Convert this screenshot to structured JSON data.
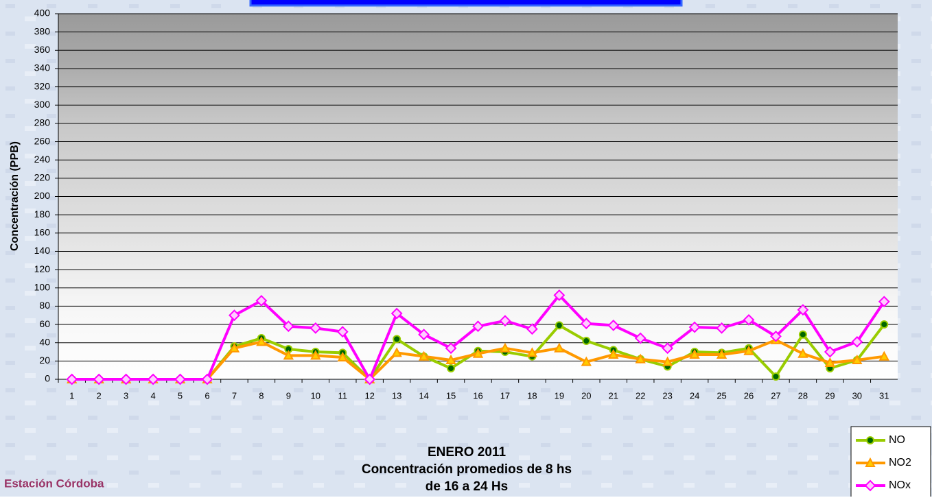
{
  "chart_data": {
    "type": "line",
    "title": "ENERO 2011",
    "subtitle": "Concentración promedios de 8 hs",
    "annotations": [
      "de 16 a 24 Hs",
      "Estación Córdoba"
    ],
    "y_label": "Concentración  (PPB)",
    "categories": [
      "1",
      "2",
      "3",
      "4",
      "5",
      "6",
      "7",
      "8",
      "9",
      "10",
      "11",
      "12",
      "13",
      "14",
      "15",
      "16",
      "17",
      "18",
      "19",
      "20",
      "21",
      "22",
      "23",
      "24",
      "25",
      "26",
      "27",
      "28",
      "29",
      "30",
      "31"
    ],
    "series": [
      {
        "name": "NO",
        "color": "#99cc00",
        "marker": "circle",
        "marker_color": "#006600",
        "values": [
          0,
          0,
          0,
          0,
          0,
          0,
          36,
          45,
          33,
          30,
          29,
          0,
          44,
          25,
          12,
          31,
          30,
          25,
          59,
          42,
          32,
          22,
          14,
          30,
          29,
          34,
          3,
          49,
          12,
          21,
          60
        ]
      },
      {
        "name": "NO2",
        "color": "#ff9900",
        "marker": "triangle",
        "marker_color": "#ffcc00",
        "values": [
          0,
          0,
          0,
          0,
          0,
          0,
          34,
          41,
          26,
          26,
          24,
          0,
          29,
          25,
          21,
          28,
          34,
          29,
          34,
          19,
          27,
          22,
          19,
          27,
          27,
          31,
          43,
          28,
          18,
          21,
          25
        ]
      },
      {
        "name": "NOx",
        "color": "#ff00ff",
        "marker": "diamond",
        "marker_color": "#ffccff",
        "values": [
          0,
          0,
          0,
          0,
          0,
          0,
          70,
          86,
          58,
          56,
          52,
          0,
          72,
          49,
          34,
          58,
          64,
          55,
          92,
          61,
          59,
          45,
          34,
          57,
          56,
          65,
          47,
          76,
          30,
          41,
          85
        ]
      }
    ],
    "ylim": [
      0,
      400
    ],
    "yticks": [
      0,
      20,
      40,
      60,
      80,
      100,
      120,
      140,
      160,
      180,
      200,
      220,
      240,
      260,
      280,
      300,
      320,
      340,
      360,
      380,
      400
    ],
    "grid": true,
    "legend": "lower right"
  }
}
